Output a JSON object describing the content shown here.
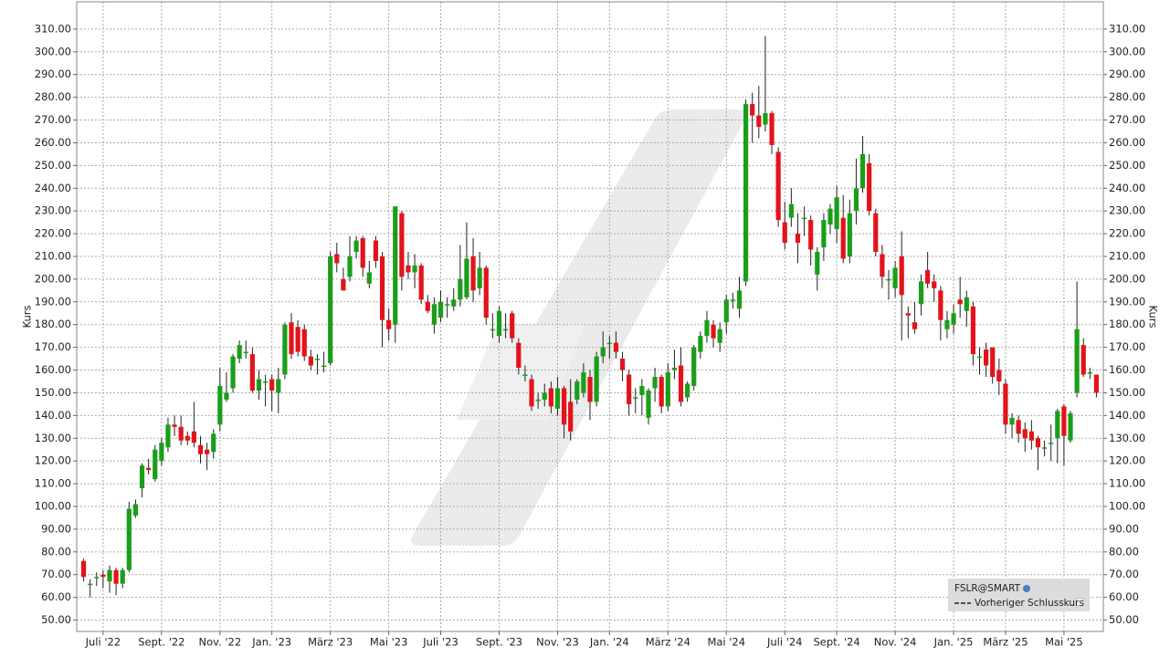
{
  "chart_data": {
    "type": "candlestick",
    "ylabel": "Kurs",
    "ylim": [
      45,
      322
    ],
    "yticks": [
      {
        "value": 50,
        "label": "50.00"
      },
      {
        "value": 60,
        "label": "60.00"
      },
      {
        "value": 70,
        "label": "70.00"
      },
      {
        "value": 80,
        "label": "80.00"
      },
      {
        "value": 90,
        "label": "90.00"
      },
      {
        "value": 100,
        "label": "100.00"
      },
      {
        "value": 110,
        "label": "110.00"
      },
      {
        "value": 120,
        "label": "120.00"
      },
      {
        "value": 130,
        "label": "130.00"
      },
      {
        "value": 140,
        "label": "140.00"
      },
      {
        "value": 150,
        "label": "150.00"
      },
      {
        "value": 160,
        "label": "160.00"
      },
      {
        "value": 170,
        "label": "170.00"
      },
      {
        "value": 180,
        "label": "180.00"
      },
      {
        "value": 190,
        "label": "190.00"
      },
      {
        "value": 200,
        "label": "200.00"
      },
      {
        "value": 210,
        "label": "210.00"
      },
      {
        "value": 220,
        "label": "220.00"
      },
      {
        "value": 230,
        "label": "230.00"
      },
      {
        "value": 240,
        "label": "240.00"
      },
      {
        "value": 250,
        "label": "250.00"
      },
      {
        "value": 260,
        "label": "260.00"
      },
      {
        "value": 270,
        "label": "270.00"
      },
      {
        "value": 280,
        "label": "280.00"
      },
      {
        "value": 290,
        "label": "290.00"
      },
      {
        "value": 300,
        "label": "300.00"
      },
      {
        "value": 310,
        "label": "310.00"
      }
    ],
    "grid": true,
    "up_color": "#1a9e1a",
    "down_color": "#e3131b",
    "legend": {
      "position": "lower right",
      "items": [
        "FSLR@SMART",
        "Vorheriger Schlusskurs"
      ]
    },
    "categories": [
      null,
      null,
      null,
      "Juli '22",
      null,
      null,
      null,
      null,
      null,
      null,
      null,
      null,
      "Sept. '22",
      null,
      null,
      null,
      null,
      null,
      null,
      null,
      null,
      "Nov. '22",
      null,
      null,
      null,
      null,
      null,
      null,
      null,
      "Jan. '23",
      null,
      null,
      null,
      null,
      null,
      null,
      null,
      null,
      "März '23",
      null,
      null,
      null,
      null,
      null,
      null,
      null,
      null,
      "Mai '23",
      null,
      null,
      null,
      null,
      null,
      null,
      null,
      "Juli '23",
      null,
      null,
      null,
      null,
      null,
      null,
      null,
      null,
      "Sept. '23",
      null,
      null,
      null,
      null,
      null,
      null,
      null,
      null,
      "Nov. '23",
      null,
      null,
      null,
      null,
      null,
      null,
      null,
      "Jan. '24",
      null,
      null,
      null,
      null,
      null,
      null,
      null,
      null,
      "März '24",
      null,
      null,
      null,
      null,
      null,
      null,
      null,
      null,
      "Mai '24",
      null,
      null,
      null,
      null,
      null,
      null,
      null,
      null,
      "Juli '24",
      null,
      null,
      null,
      null,
      null,
      null,
      null,
      "Sept. '24",
      null,
      null,
      null,
      null,
      null,
      null,
      null,
      null,
      "Nov. '24",
      null,
      null,
      null,
      null,
      null,
      null,
      null,
      null,
      "Jan. '25",
      null,
      null,
      null,
      null,
      null,
      null,
      null,
      "März '25",
      null,
      null,
      null,
      null,
      null,
      null,
      null,
      null,
      "Mai '25",
      null,
      null,
      null,
      null,
      null
    ],
    "open": [
      76,
      66,
      69,
      70,
      67,
      72,
      66,
      72,
      96,
      108,
      117,
      112,
      120,
      126,
      136,
      135,
      131,
      133,
      127,
      125,
      124,
      136,
      147,
      152,
      165,
      168,
      167,
      151,
      155,
      156,
      150,
      158,
      181,
      179,
      178,
      166,
      165,
      162,
      163,
      211,
      200,
      201,
      212,
      218,
      198,
      217,
      210,
      182,
      180,
      229,
      206,
      203,
      206,
      190,
      180,
      183,
      189,
      188,
      191,
      192,
      210,
      196,
      205,
      178,
      175,
      178,
      185,
      172,
      158,
      156,
      147,
      147,
      152,
      143,
      152,
      146,
      147,
      150,
      157,
      146,
      166,
      172,
      172,
      165,
      158,
      148,
      149,
      139,
      152,
      157,
      144,
      160,
      162,
      148,
      153,
      168,
      175,
      180,
      172,
      181,
      191,
      187,
      199,
      277,
      272,
      268,
      273,
      256,
      225,
      227,
      220,
      227,
      226,
      202,
      214,
      224,
      222,
      227,
      210,
      230,
      240,
      251,
      229,
      211,
      200,
      196,
      210,
      185,
      181,
      189,
      204,
      199,
      195,
      178,
      180,
      191,
      186,
      188,
      166,
      169,
      170,
      160,
      154,
      136,
      138,
      134,
      133,
      130,
      126,
      128,
      130,
      144,
      129,
      150,
      171,
      159,
      158
    ],
    "high": [
      77,
      68,
      71,
      72,
      74,
      73,
      73,
      102,
      103,
      119,
      121,
      127,
      130,
      139,
      140,
      140,
      133,
      146,
      131,
      128,
      134,
      161,
      159,
      167,
      173,
      173,
      170,
      160,
      158,
      158,
      161,
      181,
      185,
      182,
      180,
      169,
      167,
      168,
      212,
      216,
      205,
      219,
      219,
      219,
      208,
      219,
      212,
      187,
      232,
      230,
      212,
      211,
      207,
      193,
      192,
      195,
      192,
      196,
      215,
      225,
      218,
      212,
      206,
      185,
      188,
      185,
      186,
      174,
      162,
      158,
      150,
      154,
      155,
      157,
      153,
      156,
      156,
      163,
      160,
      168,
      177,
      175,
      177,
      168,
      160,
      152,
      156,
      152,
      161,
      158,
      163,
      169,
      170,
      155,
      171,
      177,
      186,
      182,
      181,
      193,
      194,
      201,
      279,
      282,
      285,
      307,
      274,
      258,
      234,
      240,
      229,
      232,
      228,
      214,
      229,
      233,
      241,
      237,
      235,
      253,
      263,
      255,
      231,
      215,
      204,
      208,
      221,
      188,
      190,
      202,
      212,
      202,
      197,
      186,
      189,
      201,
      195,
      190,
      170,
      172,
      170,
      165,
      156,
      141,
      140,
      137,
      138,
      131,
      129,
      136,
      143,
      145,
      142,
      199,
      174,
      161,
      158
    ],
    "low": [
      67,
      60,
      65,
      64,
      62,
      61,
      64,
      71,
      95,
      104,
      114,
      111,
      118,
      124,
      131,
      127,
      127,
      126,
      119,
      116,
      121,
      133,
      146,
      150,
      163,
      165,
      150,
      147,
      144,
      142,
      141,
      156,
      165,
      166,
      164,
      160,
      158,
      159,
      162,
      203,
      195,
      199,
      209,
      201,
      196,
      205,
      170,
      173,
      172,
      195,
      200,
      196,
      189,
      185,
      176,
      181,
      183,
      186,
      188,
      191,
      190,
      193,
      180,
      174,
      172,
      174,
      172,
      158,
      155,
      142,
      143,
      144,
      141,
      140,
      130,
      129,
      145,
      148,
      138,
      144,
      163,
      165,
      165,
      155,
      140,
      141,
      140,
      136,
      146,
      141,
      142,
      156,
      144,
      146,
      151,
      165,
      172,
      170,
      168,
      176,
      187,
      183,
      197,
      260,
      262,
      265,
      255,
      223,
      213,
      223,
      207,
      219,
      206,
      195,
      208,
      220,
      216,
      207,
      207,
      224,
      238,
      228,
      210,
      196,
      191,
      192,
      173,
      174,
      176,
      184,
      196,
      190,
      173,
      174,
      176,
      183,
      179,
      162,
      158,
      157,
      154,
      149,
      132,
      130,
      128,
      124,
      125,
      116,
      122,
      120,
      119,
      118,
      128,
      148,
      157,
      156,
      148
    ],
    "close": [
      69,
      66,
      69,
      69,
      72,
      66,
      72,
      99,
      101,
      118,
      116,
      125,
      128,
      136,
      135,
      129,
      129,
      128,
      123,
      123,
      132,
      153,
      150,
      166,
      171,
      168,
      151,
      156,
      155,
      151,
      156,
      180,
      167,
      168,
      166,
      162,
      165,
      162,
      210,
      207,
      195,
      210,
      217,
      205,
      203,
      208,
      182,
      178,
      232,
      201,
      203,
      206,
      191,
      186,
      189,
      190,
      189,
      191,
      200,
      209,
      195,
      205,
      183,
      178,
      186,
      178,
      174,
      161,
      158,
      144,
      147,
      150,
      144,
      152,
      136,
      133,
      155,
      159,
      146,
      166,
      170,
      172,
      168,
      160,
      145,
      148,
      153,
      151,
      157,
      144,
      159,
      161,
      146,
      154,
      170,
      175,
      182,
      174,
      178,
      191,
      191,
      195,
      277,
      272,
      267,
      273,
      259,
      226,
      216,
      233,
      216,
      227,
      213,
      212,
      226,
      231,
      236,
      209,
      229,
      240,
      255,
      230,
      212,
      201,
      200,
      205,
      193,
      184,
      178,
      199,
      198,
      196,
      182,
      182,
      185,
      189,
      192,
      167,
      166,
      162,
      157,
      155,
      136,
      139,
      132,
      130,
      129,
      126,
      126,
      128,
      142,
      131,
      141,
      178,
      158,
      159,
      150
    ]
  }
}
